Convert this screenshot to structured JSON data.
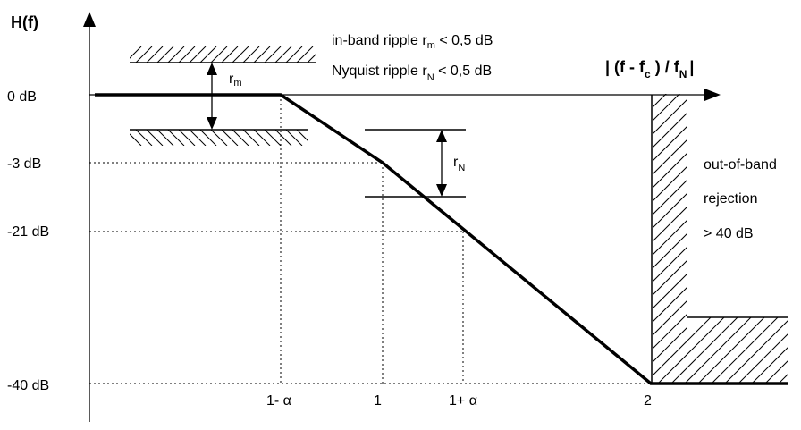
{
  "axes": {
    "y_label": "H(f)",
    "x_label": {
      "open": "| (f - f",
      "open_sub": "c",
      "mid": " ) / f",
      "mid_sub": "N",
      "close": "|"
    }
  },
  "y_ticks": [
    "0 dB",
    "-3 dB",
    "-21 dB",
    "-40 dB"
  ],
  "x_ticks": {
    "one_minus_alpha": "1- α",
    "one": "1",
    "one_plus_alpha": "1+ α",
    "two": "2"
  },
  "specs": {
    "in_band": {
      "text": "in-band ripple r",
      "sub": "m",
      "value": "  < 0,5 dB"
    },
    "nyquist": {
      "text": "Nyquist ripple r",
      "sub": "N",
      "value": "  < 0,5 dB"
    }
  },
  "ripple_labels": {
    "rm": {
      "base": "r",
      "sub": "m"
    },
    "rn": {
      "base": "r",
      "sub": "N"
    }
  },
  "rejection": {
    "line1": "out-of-band",
    "line2": "rejection",
    "line3": "> 40 dB"
  }
}
